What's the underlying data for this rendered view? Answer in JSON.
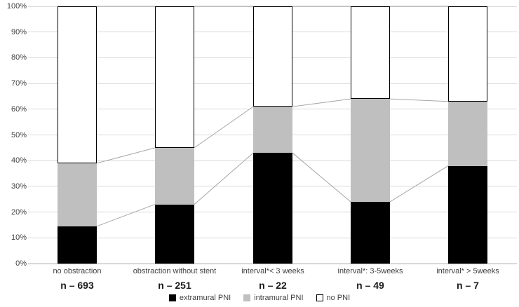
{
  "chart_data": {
    "type": "bar",
    "subtype": "100-percent-stacked-column",
    "title": "",
    "categories": [
      "no obstraction",
      "obstraction without stent",
      "interval*< 3 weeks",
      "interval*: 3-5weeks",
      "interval* > 5weeks"
    ],
    "n_labels": [
      "n – 693",
      "n – 251",
      "n – 22",
      "n – 49",
      "n – 7"
    ],
    "series": [
      {
        "name": "extramural PNI",
        "color": "#000000",
        "values": [
          14.5,
          23,
          43,
          24,
          38
        ]
      },
      {
        "name": "intramural PNI",
        "color": "#bfbfbf",
        "values": [
          24.5,
          22,
          18,
          40,
          25
        ]
      },
      {
        "name": "no PNI",
        "color": "#ffffff",
        "values": [
          61,
          55,
          39,
          36,
          37
        ]
      }
    ],
    "cumulative_tops": {
      "extramural_PNI": [
        14.5,
        23,
        43,
        24,
        38
      ],
      "intramural_PNI": [
        39,
        45,
        61,
        64,
        63
      ],
      "no_PNI": [
        100,
        100,
        100,
        100,
        100
      ]
    },
    "y_axis": {
      "ticks": [
        "0%",
        "10%",
        "20%",
        "30%",
        "40%",
        "50%",
        "60%",
        "70%",
        "80%",
        "90%",
        "100%"
      ],
      "range": [
        0,
        100
      ]
    },
    "legend": {
      "position": "bottom",
      "items": [
        {
          "label": "extramural PNI",
          "color": "#000000",
          "border": "#000000"
        },
        {
          "label": "intramural PNI",
          "color": "#bfbfbf",
          "border": "#bfbfbf"
        },
        {
          "label": "no PNI",
          "color": "#ffffff",
          "border": "#000000"
        }
      ]
    },
    "grid": true,
    "colors": {
      "gridline": "#d9d9d9",
      "axis_line": "#a6a6a6",
      "connector_line": "#a6a6a6",
      "tick_text": "#404040",
      "category_text": "#404040",
      "n_text": "#1a1a1a"
    }
  }
}
